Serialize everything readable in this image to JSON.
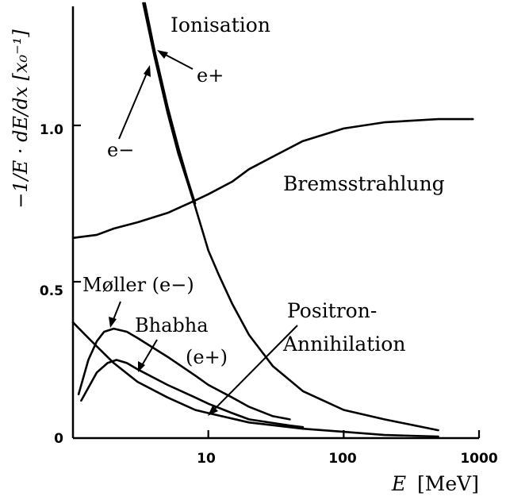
{
  "chart_data": {
    "type": "line",
    "xscale": "log",
    "xlim": [
      1,
      1000
    ],
    "ylim": [
      0,
      1.4
    ],
    "grid": false,
    "legend": "none",
    "xlabel_main": "E",
    "xlabel_unit": "[MeV]",
    "ylabel": "−1/E · dE/dx [x₀⁻¹]",
    "x_ticks": [
      {
        "value": 10,
        "label": "10"
      },
      {
        "value": 100,
        "label": "100"
      },
      {
        "value": 1000,
        "label": "1000"
      }
    ],
    "y_ticks": [
      {
        "value": 0,
        "label": "0"
      },
      {
        "value": 0.5,
        "label": "0.5"
      },
      {
        "value": 1.0,
        "label": "1.0"
      }
    ],
    "annotations": {
      "ionisation": "Ionisation",
      "e_plus": "e+",
      "e_minus": "e−",
      "bremsstrahlung": "Bremsstrahlung",
      "moller": "Møller (e−)",
      "bhabha": "Bhabha",
      "bhabha_sub": "(e+)",
      "positron": "Positron-",
      "annihilation": "Annihilation"
    },
    "series": [
      {
        "name": "Ionisation e−",
        "points": [
          [
            3.3,
            1.4
          ],
          [
            4,
            1.22
          ],
          [
            5,
            1.04
          ],
          [
            6,
            0.91
          ],
          [
            7,
            0.82
          ],
          [
            8,
            0.74
          ],
          [
            10,
            0.6
          ],
          [
            12,
            0.52
          ],
          [
            15,
            0.43
          ],
          [
            20,
            0.33
          ],
          [
            30,
            0.23
          ],
          [
            50,
            0.15
          ],
          [
            100,
            0.09
          ],
          [
            200,
            0.06
          ],
          [
            500,
            0.025
          ]
        ]
      },
      {
        "name": "Ionisation e+",
        "points": [
          [
            3.4,
            1.4
          ],
          [
            4,
            1.24
          ],
          [
            5,
            1.06
          ],
          [
            6,
            0.93
          ],
          [
            7,
            0.83
          ],
          [
            8,
            0.75
          ]
        ]
      },
      {
        "name": "Bremsstrahlung",
        "points": [
          [
            1,
            0.64
          ],
          [
            1.5,
            0.65
          ],
          [
            2,
            0.67
          ],
          [
            3,
            0.69
          ],
          [
            5,
            0.72
          ],
          [
            8,
            0.76
          ],
          [
            10,
            0.78
          ],
          [
            15,
            0.82
          ],
          [
            20,
            0.86
          ],
          [
            30,
            0.9
          ],
          [
            50,
            0.95
          ],
          [
            100,
            0.99
          ],
          [
            200,
            1.01
          ],
          [
            500,
            1.02
          ],
          [
            900,
            1.02
          ]
        ]
      },
      {
        "name": "Møller (e−)",
        "points": [
          [
            1.1,
            0.14
          ],
          [
            1.3,
            0.25
          ],
          [
            1.5,
            0.31
          ],
          [
            1.7,
            0.34
          ],
          [
            2,
            0.35
          ],
          [
            2.5,
            0.34
          ],
          [
            3,
            0.32
          ],
          [
            5,
            0.26
          ],
          [
            8,
            0.2
          ],
          [
            10,
            0.17
          ],
          [
            15,
            0.13
          ],
          [
            20,
            0.1
          ],
          [
            30,
            0.07
          ],
          [
            40,
            0.06
          ]
        ]
      },
      {
        "name": "Bhabha (e+)",
        "points": [
          [
            1.15,
            0.12
          ],
          [
            1.5,
            0.21
          ],
          [
            1.8,
            0.24
          ],
          [
            2.1,
            0.25
          ],
          [
            2.5,
            0.24
          ],
          [
            3,
            0.22
          ],
          [
            5,
            0.17
          ],
          [
            8,
            0.13
          ],
          [
            10,
            0.11
          ],
          [
            15,
            0.08
          ],
          [
            20,
            0.06
          ],
          [
            40,
            0.04
          ],
          [
            50,
            0.035
          ]
        ]
      },
      {
        "name": "Positron-Annihilation",
        "points": [
          [
            1,
            0.37
          ],
          [
            1.3,
            0.32
          ],
          [
            1.7,
            0.27
          ],
          [
            2,
            0.24
          ],
          [
            3,
            0.18
          ],
          [
            5,
            0.13
          ],
          [
            8,
            0.09
          ],
          [
            10,
            0.08
          ],
          [
            20,
            0.05
          ],
          [
            50,
            0.03
          ],
          [
            100,
            0.02
          ],
          [
            200,
            0.01
          ],
          [
            500,
            0.005
          ]
        ]
      }
    ]
  }
}
